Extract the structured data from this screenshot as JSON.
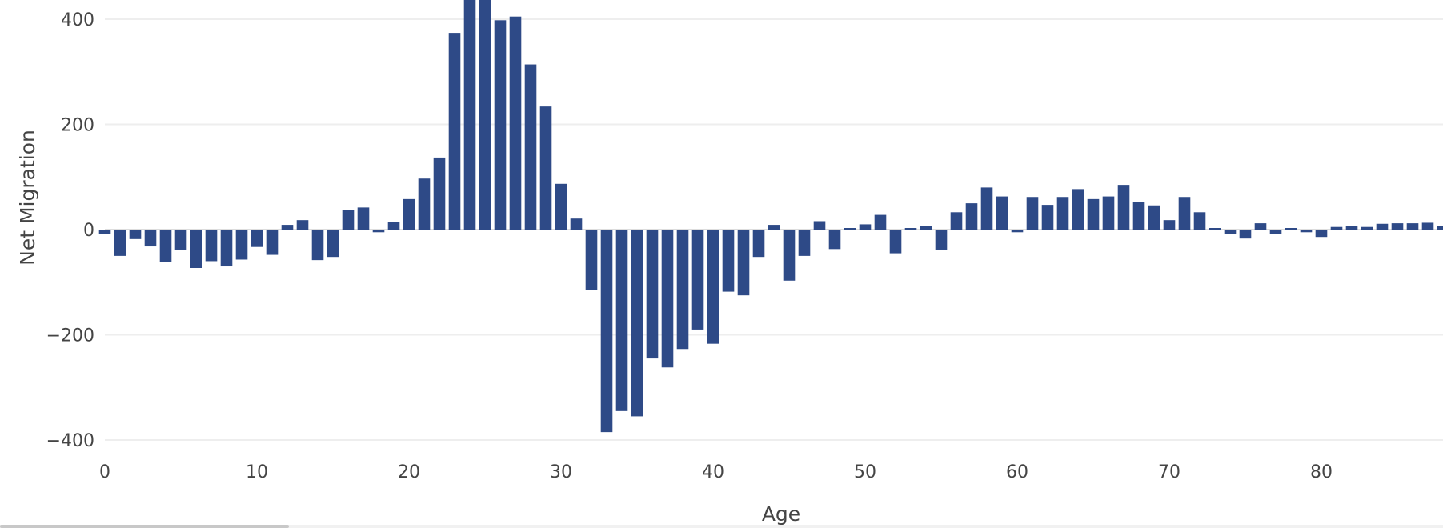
{
  "chart_data": {
    "type": "bar",
    "title": "",
    "xlabel": "Age",
    "ylabel": "Net Migration",
    "xlim": [
      0,
      88
    ],
    "ylim": [
      -440,
      440
    ],
    "x_ticks": [
      0,
      10,
      20,
      30,
      40,
      50,
      60,
      70,
      80
    ],
    "y_ticks": [
      -400,
      -200,
      0,
      200,
      400
    ],
    "y_tick_labels": [
      "−400",
      "−200",
      "0",
      "200",
      "400"
    ],
    "grid": true,
    "legend": "none",
    "bar_color": "#2e4a87",
    "x": [
      0,
      1,
      2,
      3,
      4,
      5,
      6,
      7,
      8,
      9,
      10,
      11,
      12,
      13,
      14,
      15,
      16,
      17,
      18,
      19,
      20,
      21,
      22,
      23,
      24,
      25,
      26,
      27,
      28,
      29,
      30,
      31,
      32,
      33,
      34,
      35,
      36,
      37,
      38,
      39,
      40,
      41,
      42,
      43,
      44,
      45,
      46,
      47,
      48,
      49,
      50,
      51,
      52,
      53,
      54,
      55,
      56,
      57,
      58,
      59,
      60,
      61,
      62,
      63,
      64,
      65,
      66,
      67,
      68,
      69,
      70,
      71,
      72,
      73,
      74,
      75,
      76,
      77,
      78,
      79,
      80,
      81,
      82,
      83,
      84,
      85,
      86,
      87,
      88
    ],
    "values": [
      -8,
      -50,
      -18,
      -32,
      -62,
      -38,
      -73,
      -60,
      -70,
      -57,
      -33,
      -48,
      9,
      18,
      -58,
      -52,
      38,
      42,
      -5,
      15,
      58,
      97,
      137,
      374,
      440,
      440,
      398,
      405,
      314,
      234,
      87,
      21,
      -115,
      -385,
      -345,
      -355,
      -245,
      -262,
      -227,
      -190,
      -217,
      -118,
      -125,
      -52,
      9,
      -97,
      -50,
      16,
      -37,
      3,
      10,
      28,
      -45,
      3,
      7,
      -38,
      33,
      50,
      80,
      63,
      -5,
      62,
      47,
      62,
      77,
      58,
      63,
      85,
      52,
      46,
      18,
      62,
      33,
      2,
      -9,
      -17,
      12,
      -8,
      2,
      -5,
      -14,
      5,
      7,
      5,
      11,
      12,
      12,
      13,
      7
    ]
  },
  "scrollbar": {
    "thumb_fraction": 0.2
  }
}
